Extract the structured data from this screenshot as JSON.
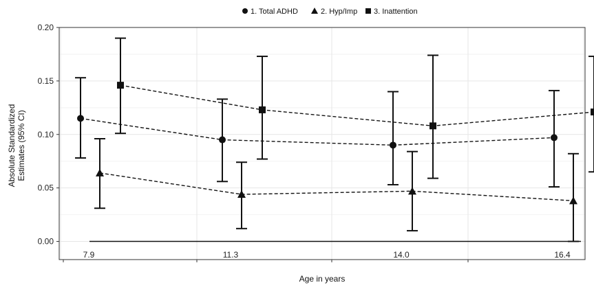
{
  "chart_data": {
    "type": "line",
    "title": "",
    "xlabel": "Age in years",
    "ylabel_lines": [
      "Absolute Standardized",
      "Estimates (95% CI)"
    ],
    "x_categories": [
      "7.9",
      "11.3",
      "14.0",
      "16.4"
    ],
    "ylim": [
      -0.017,
      0.2
    ],
    "yticks": [
      "0.00",
      "0.05",
      "0.10",
      "0.15",
      "0.20"
    ],
    "grid": true,
    "legend_position": "top",
    "series": [
      {
        "name": "1. Total ADHD",
        "marker": "circle",
        "values": [
          0.115,
          0.095,
          0.09,
          0.097
        ],
        "ci_lower": [
          0.078,
          0.056,
          0.053,
          0.051
        ],
        "ci_upper": [
          0.153,
          0.133,
          0.14,
          0.141
        ]
      },
      {
        "name": "2. Hyp/Imp",
        "marker": "triangle",
        "values": [
          0.064,
          0.044,
          0.047,
          0.038
        ],
        "ci_lower": [
          0.031,
          0.012,
          0.01,
          0.0
        ],
        "ci_upper": [
          0.096,
          0.074,
          0.084,
          0.082
        ]
      },
      {
        "name": "3. Inattention",
        "marker": "square",
        "values": [
          0.146,
          0.123,
          0.108,
          0.121
        ],
        "ci_lower": [
          0.101,
          0.077,
          0.059,
          0.065
        ],
        "ci_upper": [
          0.19,
          0.173,
          0.174,
          0.173
        ]
      }
    ],
    "colors": {
      "line": "#111111",
      "grid": "#e6e6e6",
      "axis": "#333333"
    }
  }
}
